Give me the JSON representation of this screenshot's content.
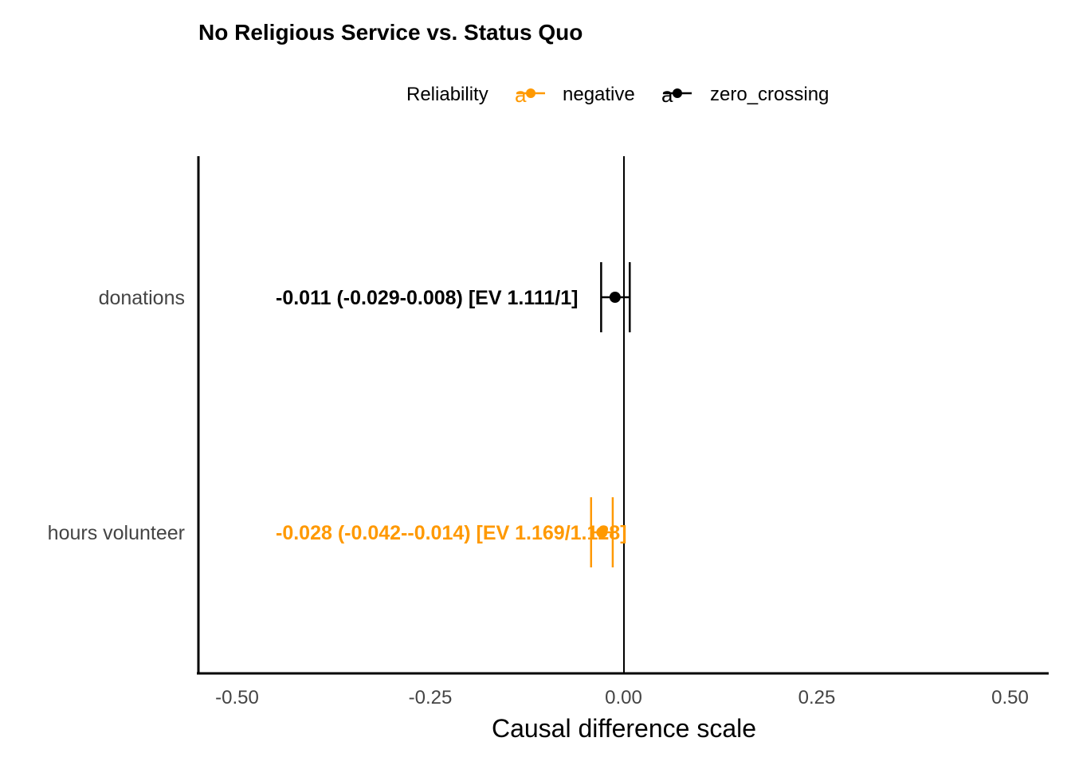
{
  "chart_data": {
    "type": "scatter",
    "subtype": "forest-plot",
    "title": "No Religious Service vs. Status Quo",
    "xlabel": "Causal difference scale",
    "ylabel": "",
    "xlim": [
      -0.55,
      0.55
    ],
    "xticks": [
      -0.5,
      -0.25,
      0.0,
      0.25,
      0.5
    ],
    "xtick_labels": [
      "-0.50",
      "-0.25",
      "0.00",
      "0.25",
      "0.50"
    ],
    "reference_line_x": 0.0,
    "grid": false,
    "legend": {
      "title": "Reliability",
      "placement": "top",
      "glyph": "a",
      "entries": [
        {
          "label": "negative",
          "color": "#FF9900"
        },
        {
          "label": "zero_crossing",
          "color": "#000000"
        }
      ]
    },
    "label_x": -0.45,
    "rows": [
      {
        "category": "donations",
        "estimate": -0.011,
        "lower": -0.029,
        "upper": 0.008,
        "reliability": "zero_crossing",
        "color": "#000000",
        "label": "-0.011 (-0.029-0.008) [EV 1.111/1]"
      },
      {
        "category": "hours volunteer",
        "estimate": -0.028,
        "lower": -0.042,
        "upper": -0.014,
        "reliability": "negative",
        "color": "#FF9900",
        "label": "-0.028 (-0.042--0.014) [EV 1.169/1.128]"
      }
    ]
  }
}
